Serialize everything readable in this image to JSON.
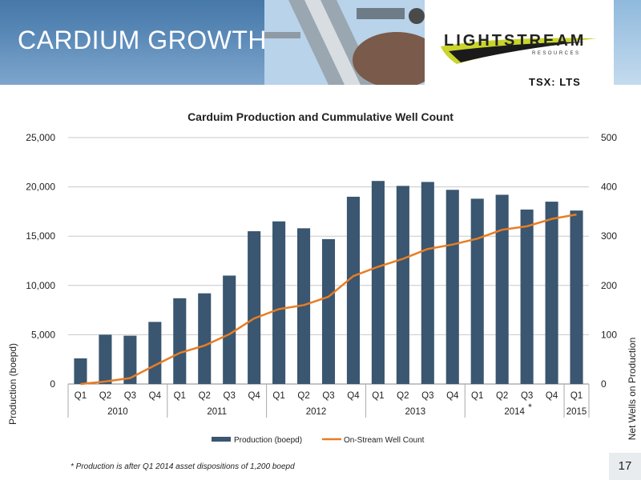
{
  "header": {
    "title": "CARDIUM GROWTH",
    "logo_text": "LIGHTSTREAM",
    "logo_sub": "RESOURCES",
    "ticker": "TSX: LTS"
  },
  "chart_data": {
    "type": "bar",
    "title": "Carduim Production and Cummulative Well Count",
    "ylabel": "Production (boepd)",
    "y2label": "Net Wells on Production",
    "ylim": [
      0,
      25000
    ],
    "y2lim": [
      0,
      500
    ],
    "yticks": [
      "0",
      "5,000",
      "10,000",
      "15,000",
      "20,000",
      "25,000"
    ],
    "y2ticks": [
      "0",
      "100",
      "200",
      "300",
      "400",
      "500"
    ],
    "categories": [
      "Q1",
      "Q2",
      "Q3",
      "Q4",
      "Q1",
      "Q2",
      "Q3",
      "Q4",
      "Q1",
      "Q2",
      "Q3",
      "Q4",
      "Q1",
      "Q2",
      "Q3",
      "Q4",
      "Q1",
      "Q2",
      "Q3",
      "Q4",
      "Q1"
    ],
    "years": [
      {
        "label": "2010",
        "start": 0,
        "end": 4
      },
      {
        "label": "2011",
        "start": 4,
        "end": 8
      },
      {
        "label": "2012",
        "start": 8,
        "end": 12
      },
      {
        "label": "2013",
        "start": 12,
        "end": 16
      },
      {
        "label": "2014",
        "start": 16,
        "end": 20
      },
      {
        "label": "2015",
        "start": 20,
        "end": 21
      }
    ],
    "year_marker": "*",
    "grid": true,
    "legend_position": "bottom",
    "colors": {
      "bar": "#3a5670",
      "line": "#e87d24"
    },
    "series": [
      {
        "name": "Production (boepd)",
        "type": "bar",
        "axis": "left",
        "values": [
          2600,
          5000,
          4900,
          6300,
          8700,
          9200,
          11000,
          15500,
          16500,
          15800,
          14700,
          19000,
          20600,
          20100,
          20500,
          19700,
          18800,
          19200,
          17700,
          18500,
          17600
        ]
      },
      {
        "name": "On-Stream Well Count",
        "type": "line",
        "axis": "right",
        "values": [
          0,
          5,
          12,
          38,
          63,
          78,
          101,
          133,
          152,
          160,
          177,
          219,
          238,
          254,
          274,
          283,
          295,
          313,
          320,
          335,
          344
        ]
      }
    ]
  },
  "footnote": "* Production is after Q1 2014 asset dispositions of 1,200 boepd",
  "page_number": "17"
}
